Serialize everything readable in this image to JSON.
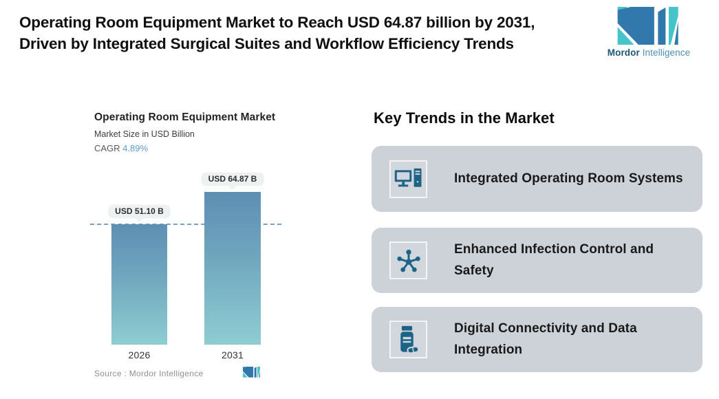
{
  "header": {
    "title": "Operating Room Equipment Market to Reach USD 64.87 billion by 2031, Driven by Integrated Surgical Suites and Workflow Efficiency Trends"
  },
  "brand": {
    "name_bold": "Mordor",
    "name_regular": " Intelligence"
  },
  "chart_data": {
    "type": "bar",
    "title": "Operating Room Equipment Market",
    "subtitle": "Market Size in USD Billion",
    "cagr_label": "CAGR ",
    "cagr_value": "4.89%",
    "categories": [
      "2026",
      "2031"
    ],
    "values": [
      51.1,
      64.87
    ],
    "value_labels": [
      "USD 51.10 B",
      "USD 64.87 B"
    ],
    "ylim": [
      0,
      64.87
    ],
    "reference_line_at": 51.1,
    "grid": "off",
    "legend": "none",
    "source": "Source :  Mordor Intelligence"
  },
  "trends": {
    "heading": "Key Trends in the Market",
    "cards": [
      {
        "icon": "desktop-computer-icon",
        "label": "Integrated Operating Room Systems"
      },
      {
        "icon": "molecule-icon",
        "label": "Enhanced Infection Control and Safety"
      },
      {
        "icon": "medicine-bottle-icon",
        "label": "Digital Connectivity and Data Integration"
      }
    ]
  },
  "colors": {
    "brand_blue": "#3178ac",
    "brand_teal": "#45c5c9",
    "icon_blue": "#1d6386",
    "card_bg": "#cdd1d8",
    "bar_gradient_top": "#5d8fb4",
    "bar_gradient_bottom": "#8ecdd2",
    "reference_line": "#74a2c8",
    "cagr_value_blue": "#5d9bd3"
  }
}
